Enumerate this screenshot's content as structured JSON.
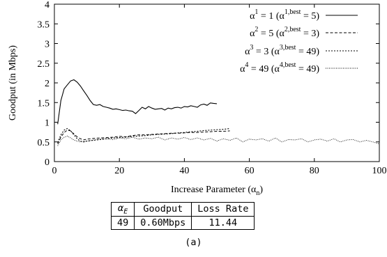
{
  "chart_data": {
    "type": "line",
    "xlabel": "Increase Parameter (α",
    "xlabel_sub": "n",
    "xlabel_close": ")",
    "ylabel": "Goodput (in Mbps)",
    "xlim": [
      0,
      100
    ],
    "ylim": [
      0,
      4
    ],
    "xticks": [
      0,
      20,
      40,
      60,
      80,
      100
    ],
    "yticks": [
      0,
      0.5,
      1,
      1.5,
      2,
      2.5,
      3,
      3.5,
      4
    ],
    "ytick_labels": [
      "0",
      "0.5",
      "1",
      "1.5",
      "2",
      "2.5",
      "3",
      "3.5",
      "4"
    ],
    "legend_position": "top-right",
    "grid": false,
    "series": [
      {
        "name_parts": {
          "sup1": "1",
          "val": "1",
          "sup2": "1,best",
          "best": "5"
        },
        "style": "solid",
        "x": [
          1,
          2,
          3,
          4,
          5,
          6,
          7,
          8,
          9,
          10,
          11,
          12,
          13,
          14,
          15,
          16,
          17,
          18,
          19,
          20,
          21,
          22,
          23,
          24,
          25,
          26,
          27,
          28,
          29,
          30,
          31,
          32,
          33,
          34,
          35,
          36,
          37,
          38,
          39,
          40,
          41,
          42,
          43,
          44,
          45,
          46,
          47,
          48,
          49,
          50
        ],
        "y": [
          0.95,
          1.55,
          1.85,
          1.95,
          2.05,
          2.08,
          2.02,
          1.92,
          1.8,
          1.68,
          1.55,
          1.45,
          1.43,
          1.45,
          1.4,
          1.38,
          1.36,
          1.33,
          1.34,
          1.32,
          1.3,
          1.31,
          1.29,
          1.28,
          1.22,
          1.3,
          1.38,
          1.34,
          1.4,
          1.36,
          1.33,
          1.34,
          1.35,
          1.31,
          1.36,
          1.34,
          1.37,
          1.38,
          1.36,
          1.4,
          1.39,
          1.42,
          1.4,
          1.38,
          1.44,
          1.46,
          1.43,
          1.49,
          1.48,
          1.47
        ]
      },
      {
        "name_parts": {
          "sup1": "2",
          "val": "5",
          "sup2": "2,best",
          "best": "3"
        },
        "style": "dashed",
        "x": [
          1,
          2,
          3,
          4,
          5,
          6,
          7,
          8,
          9,
          10,
          12,
          14,
          16,
          18,
          20,
          22,
          24,
          26,
          28,
          30,
          32,
          34,
          36,
          38,
          40,
          42,
          44,
          46,
          48,
          50,
          52,
          54
        ],
        "y": [
          0.45,
          0.62,
          0.74,
          0.8,
          0.78,
          0.7,
          0.63,
          0.58,
          0.55,
          0.57,
          0.59,
          0.6,
          0.61,
          0.62,
          0.64,
          0.63,
          0.66,
          0.68,
          0.68,
          0.69,
          0.7,
          0.71,
          0.72,
          0.72,
          0.73,
          0.74,
          0.74,
          0.75,
          0.76,
          0.77,
          0.77,
          0.78
        ]
      },
      {
        "name_parts": {
          "sup1": "3",
          "val": "3",
          "sup2": "3,best",
          "best": "49"
        },
        "style": "dotted",
        "x": [
          1,
          2,
          3,
          4,
          5,
          6,
          7,
          8,
          9,
          10,
          12,
          14,
          16,
          18,
          20,
          22,
          24,
          26,
          28,
          30,
          32,
          34,
          36,
          38,
          40,
          42,
          44,
          46,
          48,
          50,
          52,
          54
        ],
        "y": [
          0.48,
          0.68,
          0.8,
          0.84,
          0.78,
          0.68,
          0.58,
          0.52,
          0.5,
          0.52,
          0.54,
          0.56,
          0.58,
          0.6,
          0.61,
          0.62,
          0.64,
          0.65,
          0.66,
          0.68,
          0.69,
          0.7,
          0.71,
          0.73,
          0.74,
          0.76,
          0.77,
          0.79,
          0.8,
          0.81,
          0.82,
          0.84
        ]
      },
      {
        "name_parts": {
          "sup1": "4",
          "val": "49",
          "sup2": "4,best",
          "best": "49"
        },
        "style": "fine-dotted",
        "x": [
          1,
          2,
          3,
          4,
          5,
          6,
          7,
          8,
          10,
          12,
          14,
          16,
          18,
          20,
          22,
          24,
          26,
          28,
          30,
          32,
          34,
          36,
          38,
          40,
          42,
          44,
          46,
          48,
          50,
          52,
          54,
          56,
          58,
          60,
          62,
          64,
          66,
          68,
          70,
          72,
          74,
          76,
          78,
          80,
          82,
          84,
          86,
          88,
          90,
          92,
          94,
          96,
          98,
          100
        ],
        "y": [
          0.4,
          0.55,
          0.62,
          0.65,
          0.6,
          0.55,
          0.52,
          0.5,
          0.52,
          0.55,
          0.57,
          0.58,
          0.56,
          0.6,
          0.58,
          0.62,
          0.57,
          0.6,
          0.58,
          0.62,
          0.55,
          0.6,
          0.57,
          0.61,
          0.56,
          0.6,
          0.55,
          0.59,
          0.52,
          0.58,
          0.54,
          0.6,
          0.5,
          0.57,
          0.55,
          0.58,
          0.52,
          0.6,
          0.5,
          0.56,
          0.55,
          0.58,
          0.5,
          0.55,
          0.57,
          0.52,
          0.58,
          0.5,
          0.55,
          0.56,
          0.5,
          0.54,
          0.5,
          0.45
        ]
      }
    ]
  },
  "summary_table": {
    "headers": {
      "alpha": "α",
      "alpha_sub": "E",
      "goodput": "Goodput",
      "loss": "Loss Rate"
    },
    "row": {
      "alpha": "49",
      "goodput": "0.60Mbps",
      "loss": "11.44"
    }
  },
  "caption": "(a)"
}
